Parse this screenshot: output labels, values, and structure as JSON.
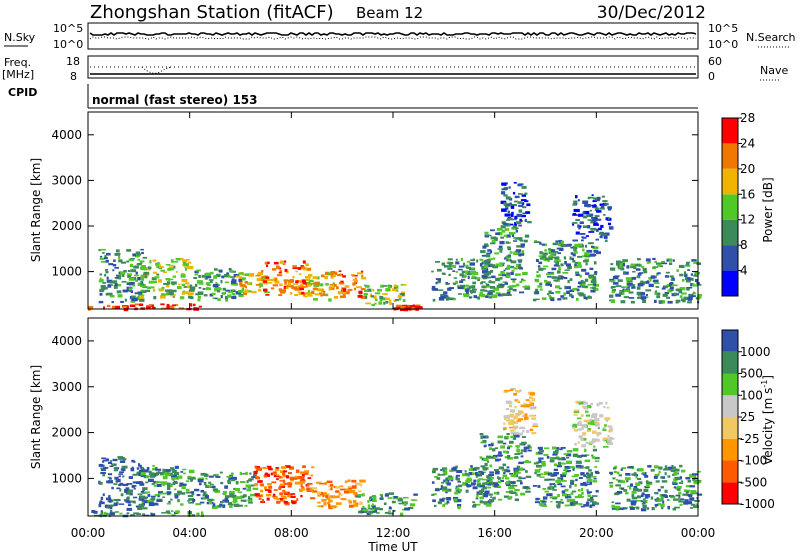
{
  "header": {
    "station": "Zhongshan Station (fitACF)",
    "beam": "Beam 12",
    "date": "30/Dec/2012"
  },
  "summary_panels": {
    "nsky_label": "N.Sky",
    "nsky_ticks": [
      "10^5",
      "10^0"
    ],
    "nsearch_label": "N.Search",
    "nsearch_ticks": [
      "10^5",
      "10^0"
    ],
    "freq_label": "Freq.",
    "freq_unit": "[MHz]",
    "freq_ticks": [
      "18",
      "8"
    ],
    "nave_label": "Nave",
    "nave_ticks": [
      "60",
      "0"
    ],
    "cpid_label": "CPID",
    "cpid_text": "normal (fast stereo) 153"
  },
  "colors": {
    "power_scale": [
      "#0000ff",
      "#2e50a8",
      "#3c8a5a",
      "#50c828",
      "#f0b400",
      "#f07800",
      "#ff0000"
    ],
    "velocity_scale": [
      "#ff0000",
      "#ff5a00",
      "#ff9600",
      "#f0c864",
      "#c8c8c8",
      "#50c828",
      "#3c8a5a",
      "#2e50a8"
    ]
  },
  "chart_data": [
    {
      "type": "heatmap",
      "name_id": "power",
      "ylabel": "Slant Range [km]",
      "yticks": [
        "1000",
        "2000",
        "3000",
        "4000"
      ],
      "ylim": [
        180,
        4500
      ],
      "xlim": [
        0,
        24
      ],
      "xticks": [],
      "colorbar_label": "Power [dB]",
      "colorbar_ticks": [
        "4",
        "8",
        "12",
        "16",
        "20",
        "24",
        "28"
      ],
      "colorbar_range": [
        0,
        32
      ],
      "regions": [
        {
          "t": [
            0.0,
            4.5
          ],
          "r": [
            200,
            320
          ],
          "level": 6
        },
        {
          "t": [
            0.4,
            2.2
          ],
          "r": [
            350,
            1500
          ],
          "level": 2
        },
        {
          "t": [
            2.0,
            4.0
          ],
          "r": [
            450,
            1300
          ],
          "level": 3
        },
        {
          "t": [
            4.0,
            6.0
          ],
          "r": [
            400,
            1100
          ],
          "level": 2
        },
        {
          "t": [
            5.8,
            7.0
          ],
          "r": [
            550,
            1000
          ],
          "level": 4
        },
        {
          "t": [
            6.8,
            8.6
          ],
          "r": [
            500,
            1250
          ],
          "level": 5
        },
        {
          "t": [
            8.5,
            9.7
          ],
          "r": [
            400,
            1000
          ],
          "level": 4
        },
        {
          "t": [
            9.5,
            10.8
          ],
          "r": [
            450,
            1050
          ],
          "level": 5
        },
        {
          "t": [
            10.8,
            12.5
          ],
          "r": [
            280,
            750
          ],
          "level": 3
        },
        {
          "t": [
            12.0,
            13.0
          ],
          "r": [
            200,
            280
          ],
          "level": 6
        },
        {
          "t": [
            13.5,
            15.8
          ],
          "r": [
            400,
            1300
          ],
          "level": 2
        },
        {
          "t": [
            15.4,
            17.2
          ],
          "r": [
            500,
            2000
          ],
          "level": 2
        },
        {
          "t": [
            16.2,
            17.3
          ],
          "r": [
            2000,
            3000
          ],
          "level": 1
        },
        {
          "t": [
            17.5,
            20.0
          ],
          "r": [
            400,
            1700
          ],
          "level": 2
        },
        {
          "t": [
            19.0,
            20.5
          ],
          "r": [
            1700,
            2700
          ],
          "level": 1
        },
        {
          "t": [
            20.5,
            24.0
          ],
          "r": [
            350,
            1300
          ],
          "level": 2
        }
      ]
    },
    {
      "type": "heatmap",
      "name_id": "velocity",
      "ylabel": "Slant Range [km]",
      "yticks": [
        "1000",
        "2000",
        "3000",
        "4000"
      ],
      "ylim": [
        180,
        4500
      ],
      "xlim": [
        0,
        24
      ],
      "xticks": [
        "00:00",
        "04:00",
        "08:00",
        "12:00",
        "16:00",
        "20:00",
        "00:00"
      ],
      "xlabel": "Time UT",
      "colorbar_label": "Velocity [m s",
      "colorbar_sup": "-1",
      "colorbar_label_end": "]",
      "colorbar_ticks": [
        "1000",
        "500",
        "100",
        "25",
        "-25",
        "-100",
        "-500",
        "-1000"
      ],
      "regions": [
        {
          "t": [
            0.0,
            4.5
          ],
          "r": [
            200,
            320
          ],
          "level": 6
        },
        {
          "t": [
            0.4,
            2.2
          ],
          "r": [
            350,
            1500
          ],
          "level": 7
        },
        {
          "t": [
            2.0,
            4.0
          ],
          "r": [
            450,
            1300
          ],
          "level": 6
        },
        {
          "t": [
            4.0,
            6.5
          ],
          "r": [
            400,
            1150
          ],
          "level": 6
        },
        {
          "t": [
            6.5,
            8.8
          ],
          "r": [
            450,
            1300
          ],
          "level": 1
        },
        {
          "t": [
            8.8,
            10.7
          ],
          "r": [
            400,
            1000
          ],
          "level": 2
        },
        {
          "t": [
            10.5,
            12.8
          ],
          "r": [
            250,
            700
          ],
          "level": 6
        },
        {
          "t": [
            13.5,
            15.8
          ],
          "r": [
            400,
            1300
          ],
          "level": 6
        },
        {
          "t": [
            15.4,
            17.3
          ],
          "r": [
            500,
            2000
          ],
          "level": 6
        },
        {
          "t": [
            16.3,
            17.5
          ],
          "r": [
            2000,
            3000
          ],
          "level": 3
        },
        {
          "t": [
            17.5,
            20.0
          ],
          "r": [
            400,
            1700
          ],
          "level": 6
        },
        {
          "t": [
            19.0,
            20.5
          ],
          "r": [
            1700,
            2700
          ],
          "level": 4
        },
        {
          "t": [
            20.5,
            24.0
          ],
          "r": [
            350,
            1300
          ],
          "level": 6
        }
      ]
    }
  ]
}
